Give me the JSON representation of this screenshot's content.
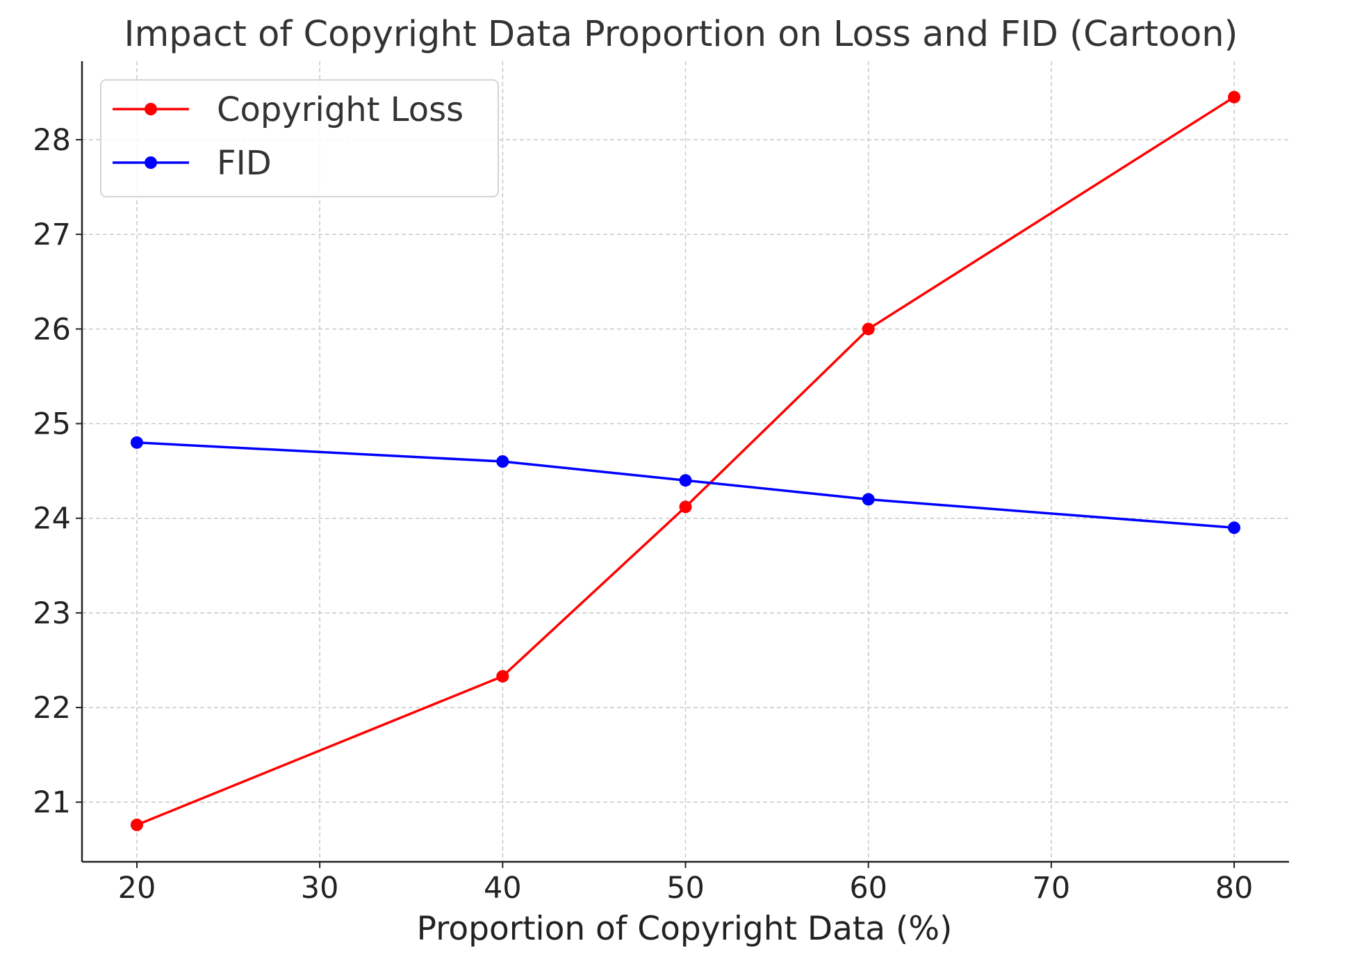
{
  "chart_data": {
    "type": "line",
    "title": "Impact of Copyright Data Proportion on Loss and FID (Cartoon)",
    "xlabel": "Proportion of Copyright Data (%)",
    "ylabel": "",
    "x": [
      20,
      40,
      50,
      60,
      80
    ],
    "xlim": [
      17,
      83
    ],
    "ylim": [
      20.37,
      28.83
    ],
    "xticks": [
      20,
      30,
      40,
      50,
      60,
      70,
      80
    ],
    "yticks": [
      21,
      22,
      23,
      24,
      25,
      26,
      27,
      28
    ],
    "grid": true,
    "legend_position": "top-left",
    "series": [
      {
        "name": "Copyright Loss",
        "color": "#ff0000",
        "marker": "circle",
        "values": [
          20.76,
          22.33,
          24.12,
          26.0,
          28.45
        ]
      },
      {
        "name": "FID",
        "color": "#0000ff",
        "marker": "circle",
        "values": [
          24.8,
          24.6,
          24.4,
          24.2,
          23.9
        ]
      }
    ]
  }
}
